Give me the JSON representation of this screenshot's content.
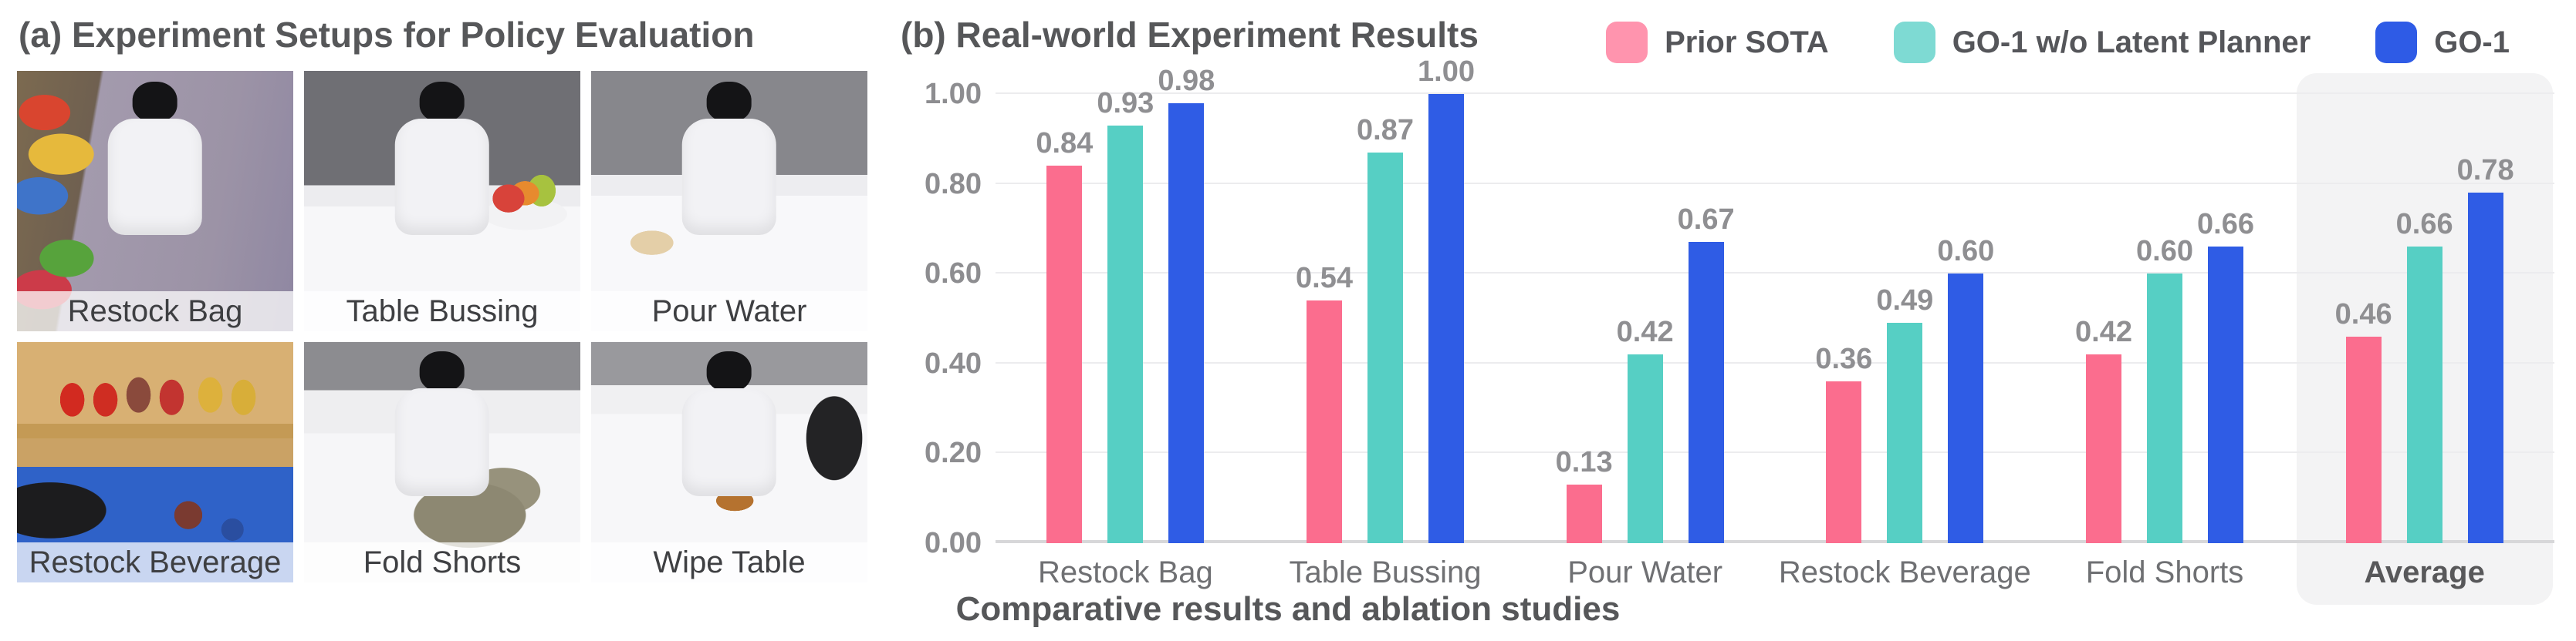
{
  "panel_a": {
    "title": "(a) Experiment Setups for Policy Evaluation",
    "tiles": [
      {
        "label": "Restock Bag"
      },
      {
        "label": "Table Bussing"
      },
      {
        "label": "Pour Water"
      },
      {
        "label": "Restock Beverage"
      },
      {
        "label": "Fold Shorts"
      },
      {
        "label": "Wipe Table"
      }
    ]
  },
  "panel_b": {
    "title": "(b) Real-world Experiment Results",
    "caption": "Comparative results and ablation studies"
  },
  "chart_data": {
    "type": "bar",
    "title": "(b) Real-world Experiment Results",
    "categories": [
      "Restock Bag",
      "Table Bussing",
      "Pour Water",
      "Restock Beverage",
      "Fold Shorts",
      "Average"
    ],
    "series": [
      {
        "name": "Prior SOTA",
        "color": "#FB6D8E",
        "legend_swatch": "#FF94AE",
        "values": [
          0.84,
          0.54,
          0.13,
          0.36,
          0.42,
          0.46
        ]
      },
      {
        "name": "GO-1 w/o Latent Planner",
        "color": "#56CFC4",
        "legend_swatch": "#7EDAD3",
        "values": [
          0.93,
          0.87,
          0.42,
          0.49,
          0.6,
          0.66
        ]
      },
      {
        "name": "GO-1",
        "color": "#2F5CE5",
        "legend_swatch": "#2E5BE6",
        "values": [
          0.98,
          1.0,
          0.67,
          0.6,
          0.66,
          0.78
        ]
      }
    ],
    "ylim": [
      0,
      1
    ],
    "yticks": [
      "0.00",
      "0.20",
      "0.40",
      "0.60",
      "0.80",
      "1.00"
    ],
    "grid": true,
    "legend_position": "top-right",
    "highlight_category": "Average",
    "xlabel": "",
    "ylabel": ""
  }
}
